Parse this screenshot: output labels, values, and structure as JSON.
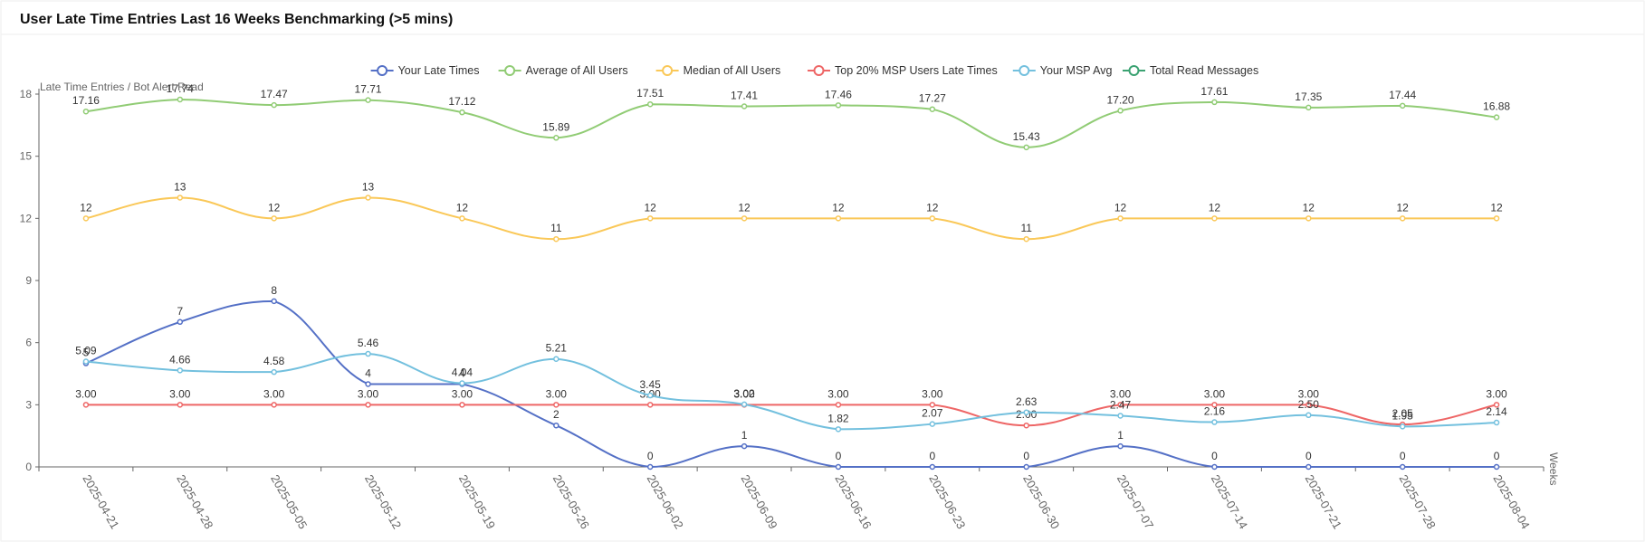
{
  "chart_data": {
    "type": "line",
    "title": "User Late Time Entries Last 16 Weeks Benchmarking (>5 mins)",
    "y_label": "Late Time Entries / Bot Alert Read",
    "x_label": "Weeks",
    "categories": [
      "2025-04-21",
      "2025-04-28",
      "2025-05-05",
      "2025-05-12",
      "2025-05-19",
      "2025-05-26",
      "2025-06-02",
      "2025-06-09",
      "2025-06-16",
      "2025-06-23",
      "2025-06-30",
      "2025-07-07",
      "2025-07-14",
      "2025-07-21",
      "2025-07-28",
      "2025-08-04"
    ],
    "ylim": [
      0,
      18
    ],
    "yticks": [
      0,
      3,
      6,
      9,
      12,
      15,
      18
    ],
    "legend": "top",
    "smooth": true,
    "series": [
      {
        "name": "Your Late Times",
        "color": "#5470c6",
        "values": [
          5,
          7,
          8,
          4,
          4,
          2,
          0,
          1,
          0,
          0,
          0,
          1,
          0,
          0,
          0,
          0
        ]
      },
      {
        "name": "Average of All Users",
        "color": "#91cc75",
        "values": [
          17.16,
          17.74,
          17.47,
          17.71,
          17.12,
          15.89,
          17.51,
          17.41,
          17.46,
          17.27,
          15.43,
          17.2,
          17.61,
          17.35,
          17.44,
          16.88
        ],
        "value_labels": [
          "17.16",
          "17.74",
          "17.47",
          "17.71",
          "17.12",
          "15.89",
          "17.51",
          "17.41",
          "17.46",
          "17.27",
          "15.43",
          "17.20",
          "17.61",
          "17.35",
          "17.44",
          "16.88"
        ]
      },
      {
        "name": "Median of All Users",
        "color": "#fac858",
        "values": [
          12,
          13,
          12,
          13,
          12,
          11,
          12,
          12,
          12,
          12,
          11,
          12,
          12,
          12,
          12,
          12
        ]
      },
      {
        "name": "Top 20% MSP Users Late Times",
        "color": "#ee6666",
        "values": [
          3,
          3,
          3,
          3,
          3,
          3,
          3,
          3,
          3,
          3,
          2,
          3,
          3,
          3,
          2.05,
          3
        ],
        "value_labels": [
          "3.00",
          "3.00",
          "3.00",
          "3.00",
          "3.00",
          "3.00",
          "3.00",
          "3.00",
          "3.00",
          "3.00",
          "2.00",
          "3.00",
          "3.00",
          "3.00",
          "2.05",
          "3.00"
        ]
      },
      {
        "name": "Your MSP Avg",
        "color": "#73c0de",
        "values": [
          5.09,
          4.66,
          4.58,
          5.46,
          4.04,
          5.21,
          3.45,
          3.02,
          1.82,
          2.07,
          2.63,
          2.47,
          2.16,
          2.5,
          1.95,
          2.14
        ],
        "value_labels": [
          "5.09",
          "4.66",
          "4.58",
          "5.46",
          "4.04",
          "5.21",
          "3.45",
          "3.02",
          "1.82",
          "2.07",
          "2.63",
          "2.47",
          "2.16",
          "2.50",
          "1.95",
          "2.14"
        ]
      },
      {
        "name": "Total Read Messages",
        "color": "#3ba272",
        "values": [
          null,
          null,
          null,
          null,
          null,
          null,
          null,
          null,
          null,
          null,
          null,
          null,
          null,
          null,
          null,
          null
        ]
      }
    ]
  }
}
